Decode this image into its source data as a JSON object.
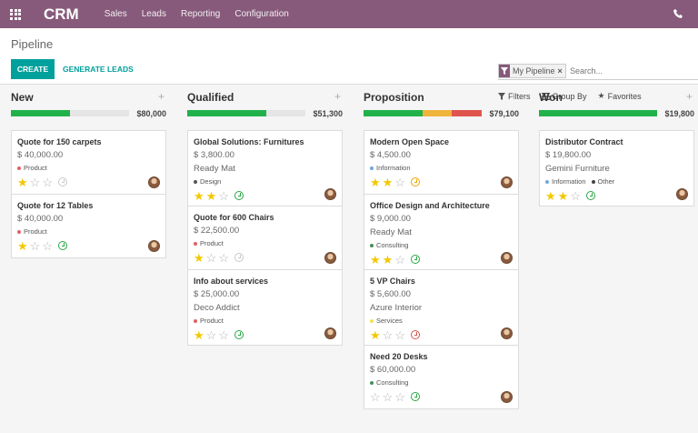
{
  "navbar": {
    "brand": "CRM",
    "menu": [
      "Sales",
      "Leads",
      "Reporting",
      "Configuration"
    ]
  },
  "control_panel": {
    "title": "Pipeline",
    "create_label": "CREATE",
    "generate_label": "GENERATE LEADS",
    "facet_label": "My Pipeline",
    "search_placeholder": "Search...",
    "filters_label": "Filters",
    "group_by_label": "Group By",
    "favorites_label": "Favorites"
  },
  "colors": {
    "brand": "#875a7b",
    "primary": "#00a09d",
    "green": "#21b14b",
    "orange": "#f0b43c",
    "red": "#e0544e",
    "star": "#f3c800"
  },
  "tag_colors": {
    "Product": "#e06161",
    "Design": "#555555",
    "Information": "#6fa8dc",
    "Consulting": "#4a8f5a",
    "Services": "#f3e34a",
    "Other": "#444444"
  },
  "columns": [
    {
      "title": "New",
      "amount": "$80,000",
      "progress": [
        {
          "color": "#21b14b",
          "fraction": 0.5
        }
      ],
      "cards": [
        {
          "title": "Quote for 150 carpets",
          "revenue": "$ 40,000.00",
          "customer": "",
          "tags": [
            "Product"
          ],
          "stars": 1,
          "activity": "grey"
        },
        {
          "title": "Quote for 12 Tables",
          "revenue": "$ 40,000.00",
          "customer": "",
          "tags": [
            "Product"
          ],
          "stars": 1,
          "activity": "green"
        }
      ]
    },
    {
      "title": "Qualified",
      "amount": "$51,300",
      "progress": [
        {
          "color": "#21b14b",
          "fraction": 0.67
        }
      ],
      "cards": [
        {
          "title": "Global Solutions: Furnitures",
          "revenue": "$ 3,800.00",
          "customer": "Ready Mat",
          "tags": [
            "Design"
          ],
          "stars": 2,
          "activity": "green"
        },
        {
          "title": "Quote for 600 Chairs",
          "revenue": "$ 22,500.00",
          "customer": "",
          "tags": [
            "Product"
          ],
          "stars": 1,
          "activity": "grey"
        },
        {
          "title": "Info about services",
          "revenue": "$ 25,000.00",
          "customer": "Deco Addict",
          "tags": [
            "Product"
          ],
          "stars": 1,
          "activity": "green"
        }
      ]
    },
    {
      "title": "Proposition",
      "amount": "$79,100",
      "progress": [
        {
          "color": "#21b14b",
          "fraction": 0.5
        },
        {
          "color": "#f0b43c",
          "fraction": 0.25
        },
        {
          "color": "#e0544e",
          "fraction": 0.25
        }
      ],
      "cards": [
        {
          "title": "Modern Open Space",
          "revenue": "$ 4,500.00",
          "customer": "",
          "tags": [
            "Information"
          ],
          "stars": 2,
          "activity": "orange"
        },
        {
          "title": "Office Design and Architecture",
          "revenue": "$ 9,000.00",
          "customer": "Ready Mat",
          "tags": [
            "Consulting"
          ],
          "stars": 2,
          "activity": "green"
        },
        {
          "title": "5 VP Chairs",
          "revenue": "$ 5,600.00",
          "customer": "Azure Interior",
          "tags": [
            "Services"
          ],
          "stars": 1,
          "activity": "red"
        },
        {
          "title": "Need 20 Desks",
          "revenue": "$ 60,000.00",
          "customer": "",
          "tags": [
            "Consulting"
          ],
          "stars": 0,
          "activity": "green"
        }
      ]
    },
    {
      "title": "Won",
      "amount": "$19,800",
      "progress": [
        {
          "color": "#21b14b",
          "fraction": 1.0
        }
      ],
      "cards": [
        {
          "title": "Distributor Contract",
          "revenue": "$ 19,800.00",
          "customer": "Gemini Furniture",
          "tags": [
            "Information",
            "Other"
          ],
          "stars": 2,
          "activity": "green"
        }
      ]
    }
  ]
}
